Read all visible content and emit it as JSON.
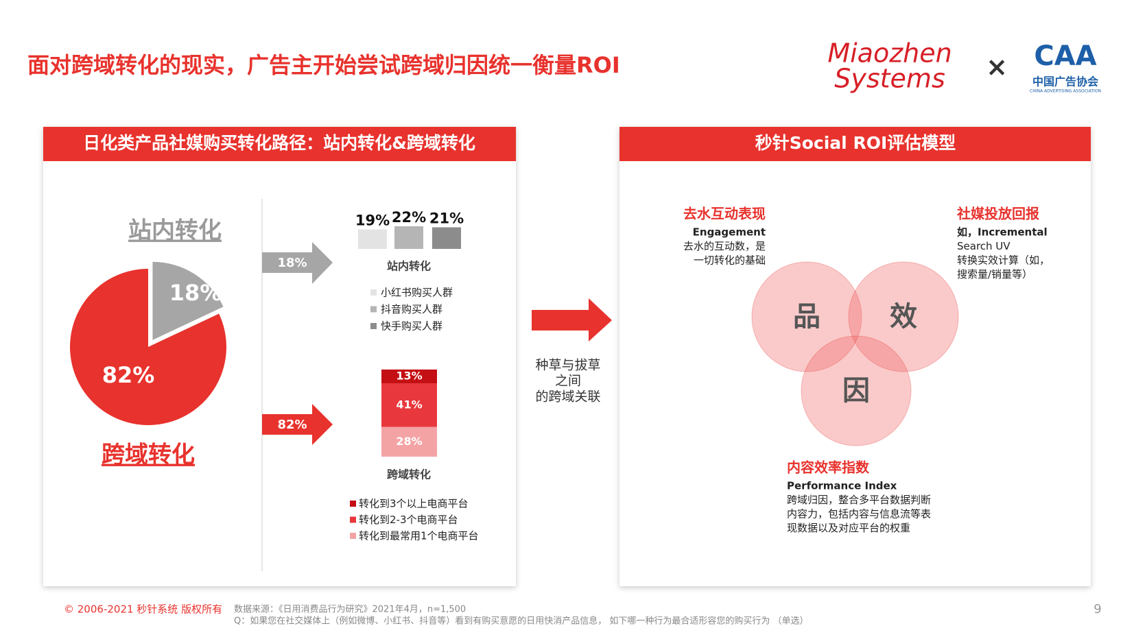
{
  "header": {
    "title": "面对跨域转化的现实，广告主开始尝试跨域归因统一衡量ROI",
    "logos": [
      "Miaozhen",
      "Systems",
      "×",
      "CAA",
      "中国广告协会",
      "CHINA ADVERTISING ASSOCIATION"
    ]
  },
  "left_panel": {
    "title": "日化类产品社媒购买转化路径：站内转化&跨域转化"
  },
  "chart_data": [
    {
      "type": "pie",
      "categories": [
        "站内转化",
        "跨域转化"
      ],
      "values": [
        18,
        82
      ],
      "value_labels": [
        "18%",
        "82%"
      ],
      "colors": [
        "#a6a6a6",
        "#e8322d"
      ]
    },
    {
      "type": "bar",
      "title": "站内转化",
      "categories": [
        "小红书购买人群",
        "抖音购买人群",
        "快手购买人群"
      ],
      "values": [
        19,
        22,
        21
      ],
      "value_labels": [
        "19%",
        "22%",
        "21%"
      ],
      "colors": [
        "#e3e3e3",
        "#b5b5b5",
        "#8c8c8c"
      ]
    },
    {
      "type": "stacked_bar",
      "title": "跨域转化",
      "series": [
        {
          "name": "转化到3个以上电商平台",
          "color": "#c40f14",
          "values": [
            13
          ],
          "value_labels": [
            "13%"
          ]
        },
        {
          "name": "转化到2-3个电商平台",
          "color": "#e8383d",
          "values": [
            41
          ],
          "value_labels": [
            "41%"
          ]
        },
        {
          "name": "转化到最常用1个电商平台",
          "color": "#f4a3a5",
          "values": [
            28
          ],
          "value_labels": [
            "28%"
          ]
        }
      ]
    }
  ],
  "bridge": {
    "lines": [
      "种草与拔草",
      "之间",
      "的跨域关联"
    ]
  },
  "right_panel": {
    "title": "秒针Social ROI评估模型",
    "circles": [
      "品",
      "效",
      "因"
    ],
    "blocks": [
      {
        "title": "去水互动表现",
        "lines": [
          "Engagement",
          "去水的互动数，是",
          "一切转化的基础"
        ]
      },
      {
        "title": "社媒投放回报",
        "lines": [
          "如，Incremental",
          "Search UV",
          "转换实效计算（如，",
          "搜索量/销量等）"
        ]
      },
      {
        "title": "内容效率指数",
        "lines": [
          "Performance Index",
          "跨域归因，整合多平台数据判断",
          "内容力，包括内容与信息流等表",
          "现数据以及对应平台的权重"
        ]
      }
    ]
  },
  "footer": {
    "copyright": "© 2006-2021 秒针系统 版权所有",
    "source": [
      "数据来源：《日用消费品行为研究》2021年4月，n=1,500",
      "Q：如果您在社交媒体上（例如微博、小红书、抖音等）看到有购买意愿的日用快消产品信息， 如下哪一种行为最合适形容您的购买行为 （单选）"
    ],
    "page": "9"
  }
}
